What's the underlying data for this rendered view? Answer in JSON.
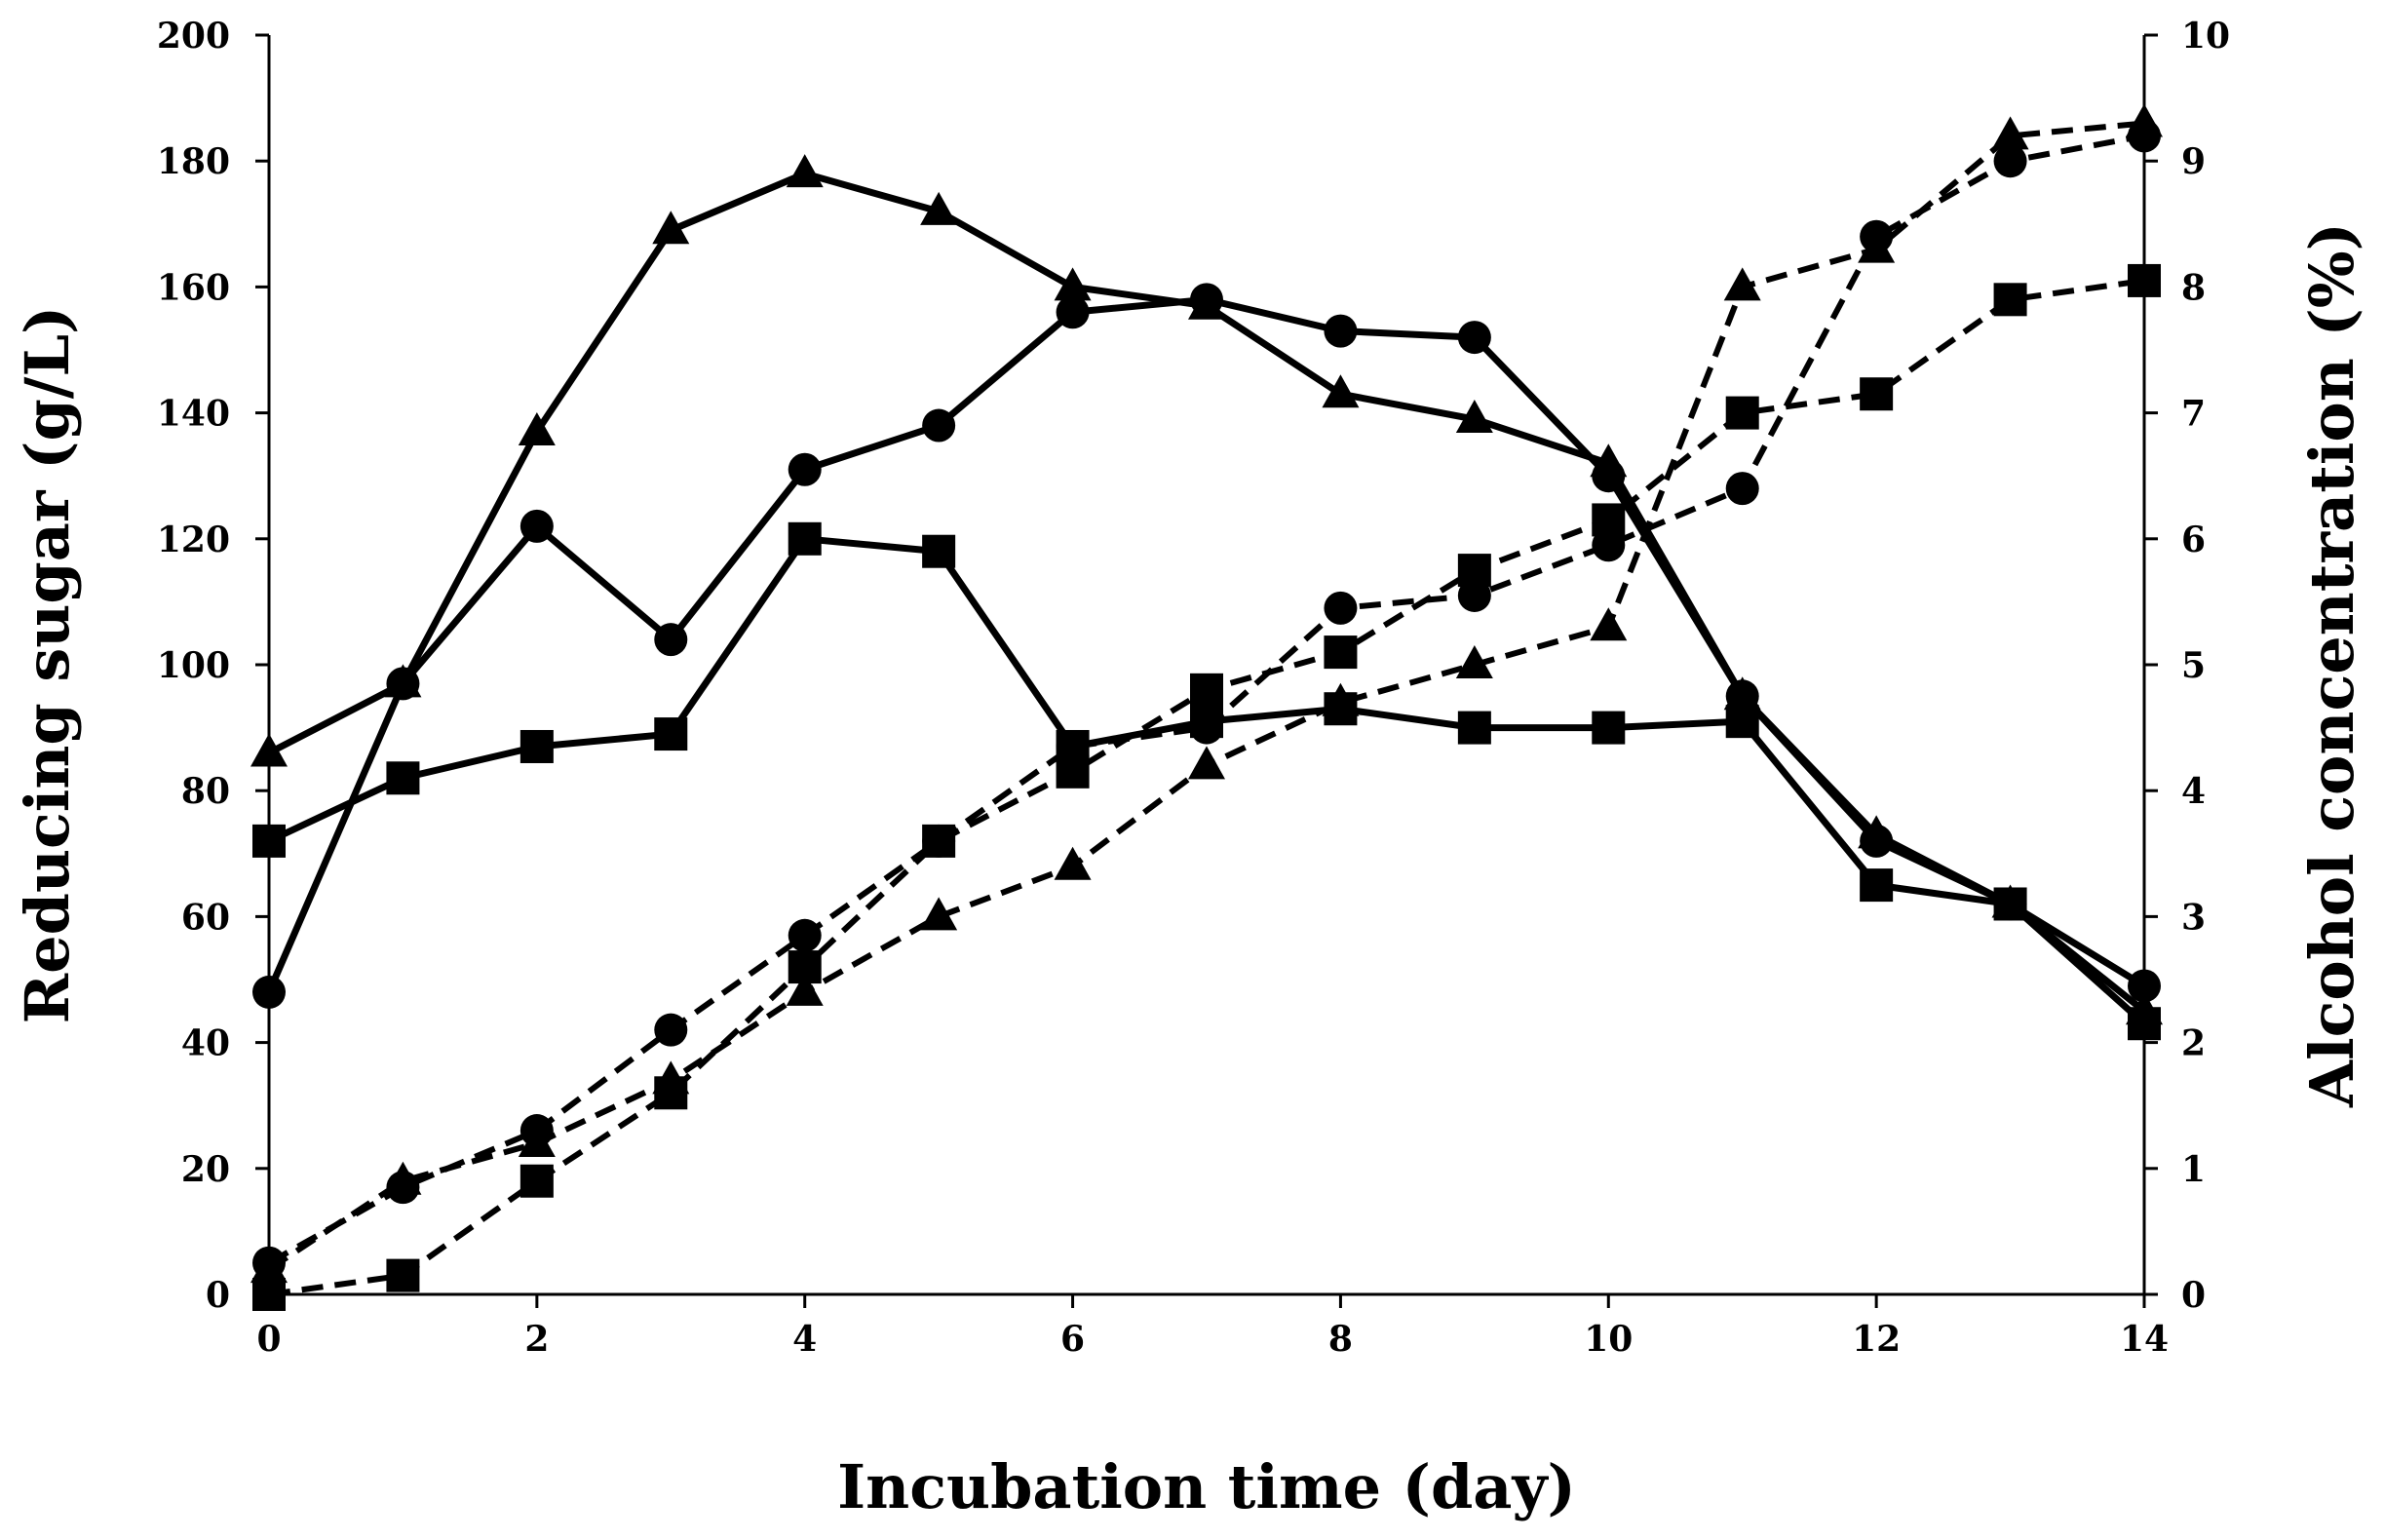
{
  "chart_data": {
    "type": "line",
    "title": "",
    "xlabel": "Incubation time (day)",
    "ylabel": "Reducing sugar (g/L)",
    "y2label": "Alcohol concentration (%)",
    "xlim": [
      0,
      14
    ],
    "ylim": [
      0,
      200
    ],
    "y2lim": [
      0,
      10
    ],
    "xticks": [
      "0",
      "2",
      "4",
      "6",
      "8",
      "10",
      "12",
      "14"
    ],
    "yticks": [
      "0",
      "20",
      "40",
      "60",
      "80",
      "100",
      "120",
      "140",
      "160",
      "180",
      "200"
    ],
    "y2ticks": [
      "0",
      "1",
      "2",
      "3",
      "4",
      "5",
      "6",
      "7",
      "8",
      "9",
      "10"
    ],
    "grid": false,
    "colors": {
      "line": "#000000",
      "background": "#ffffff"
    },
    "series": [
      {
        "name": "Reducing sugar - triangle",
        "axis": "left",
        "marker": "triangle",
        "style": "solid",
        "x": [
          0,
          1,
          2,
          3,
          4,
          5,
          6,
          7,
          8,
          9,
          10,
          11,
          12,
          13,
          14
        ],
        "y": [
          86,
          97,
          137,
          169,
          178,
          172,
          160,
          157,
          143,
          139,
          132,
          95,
          73,
          62,
          45
        ]
      },
      {
        "name": "Reducing sugar - circle",
        "axis": "left",
        "marker": "circle",
        "style": "solid",
        "x": [
          0,
          1,
          2,
          3,
          4,
          5,
          6,
          7,
          8,
          9,
          10,
          11,
          12,
          13,
          14
        ],
        "y": [
          48,
          97,
          122,
          104,
          131,
          138,
          156,
          158,
          153,
          152,
          130,
          95,
          72,
          62,
          49
        ]
      },
      {
        "name": "Reducing sugar - square",
        "axis": "left",
        "marker": "square",
        "style": "solid",
        "x": [
          0,
          1,
          2,
          3,
          4,
          5,
          6,
          7,
          8,
          9,
          10,
          11,
          12,
          13,
          14
        ],
        "y": [
          72,
          82,
          87,
          89,
          120,
          118,
          87,
          91,
          93,
          90,
          90,
          91,
          65,
          62,
          43
        ]
      },
      {
        "name": "Alcohol - triangle",
        "axis": "right",
        "marker": "triangle",
        "style": "dashed",
        "x": [
          0,
          1,
          2,
          3,
          4,
          5,
          6,
          7,
          8,
          9,
          10,
          11,
          12,
          13,
          14
        ],
        "y": [
          0.2,
          0.9,
          1.2,
          1.7,
          2.4,
          3.0,
          3.4,
          4.2,
          4.7,
          5.0,
          5.3,
          8.0,
          8.3,
          9.2,
          9.3
        ]
      },
      {
        "name": "Alcohol - circle",
        "axis": "right",
        "marker": "circle",
        "style": "dashed",
        "x": [
          0,
          1,
          2,
          3,
          4,
          5,
          6,
          7,
          8,
          9,
          10,
          11,
          12,
          13,
          14
        ],
        "y": [
          0.25,
          0.85,
          1.3,
          2.1,
          2.85,
          3.6,
          4.35,
          4.5,
          5.45,
          5.55,
          5.95,
          6.4,
          8.4,
          9.0,
          9.2
        ]
      },
      {
        "name": "Alcohol - square",
        "axis": "right",
        "marker": "square",
        "style": "dashed",
        "x": [
          0,
          1,
          2,
          3,
          4,
          5,
          6,
          7,
          8,
          9,
          10,
          11,
          12,
          13,
          14
        ],
        "y": [
          0.0,
          0.15,
          0.9,
          1.6,
          2.6,
          3.6,
          4.15,
          4.8,
          5.1,
          5.75,
          6.15,
          7.0,
          7.15,
          7.9,
          8.05
        ]
      }
    ]
  }
}
